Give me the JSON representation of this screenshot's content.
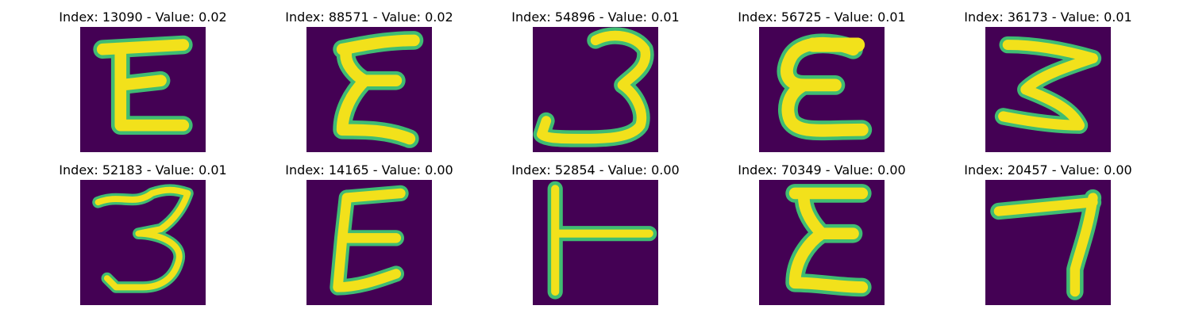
{
  "colors": {
    "background": "#440154",
    "stroke": "#f2e11b",
    "edge": "#3fbc73",
    "inner_edge": "#22a884"
  },
  "panels": [
    {
      "title": "Index: 13090 - Value: 0.02",
      "glyph": "E-shaped handwritten character"
    },
    {
      "title": "Index: 88571 - Value: 0.02",
      "glyph": "sigma-like E character"
    },
    {
      "title": "Index: 54896 - Value: 0.01",
      "glyph": "handwritten 3"
    },
    {
      "title": "Index: 56725 - Value: 0.01",
      "glyph": "rounded epsilon-like E"
    },
    {
      "title": "Index: 36173 - Value: 0.01",
      "glyph": "zig-zag 3"
    },
    {
      "title": "Index: 52183 - Value: 0.01",
      "glyph": "handwritten 3"
    },
    {
      "title": "Index: 14165 - Value: 0.00",
      "glyph": "slanted E"
    },
    {
      "title": "Index: 52854 - Value: 0.00",
      "glyph": "left-stroked T-like character"
    },
    {
      "title": "Index: 70349 - Value: 0.00",
      "glyph": "sigma-like E character"
    },
    {
      "title": "Index: 20457 - Value: 0.00",
      "glyph": "handwritten 7"
    }
  ]
}
